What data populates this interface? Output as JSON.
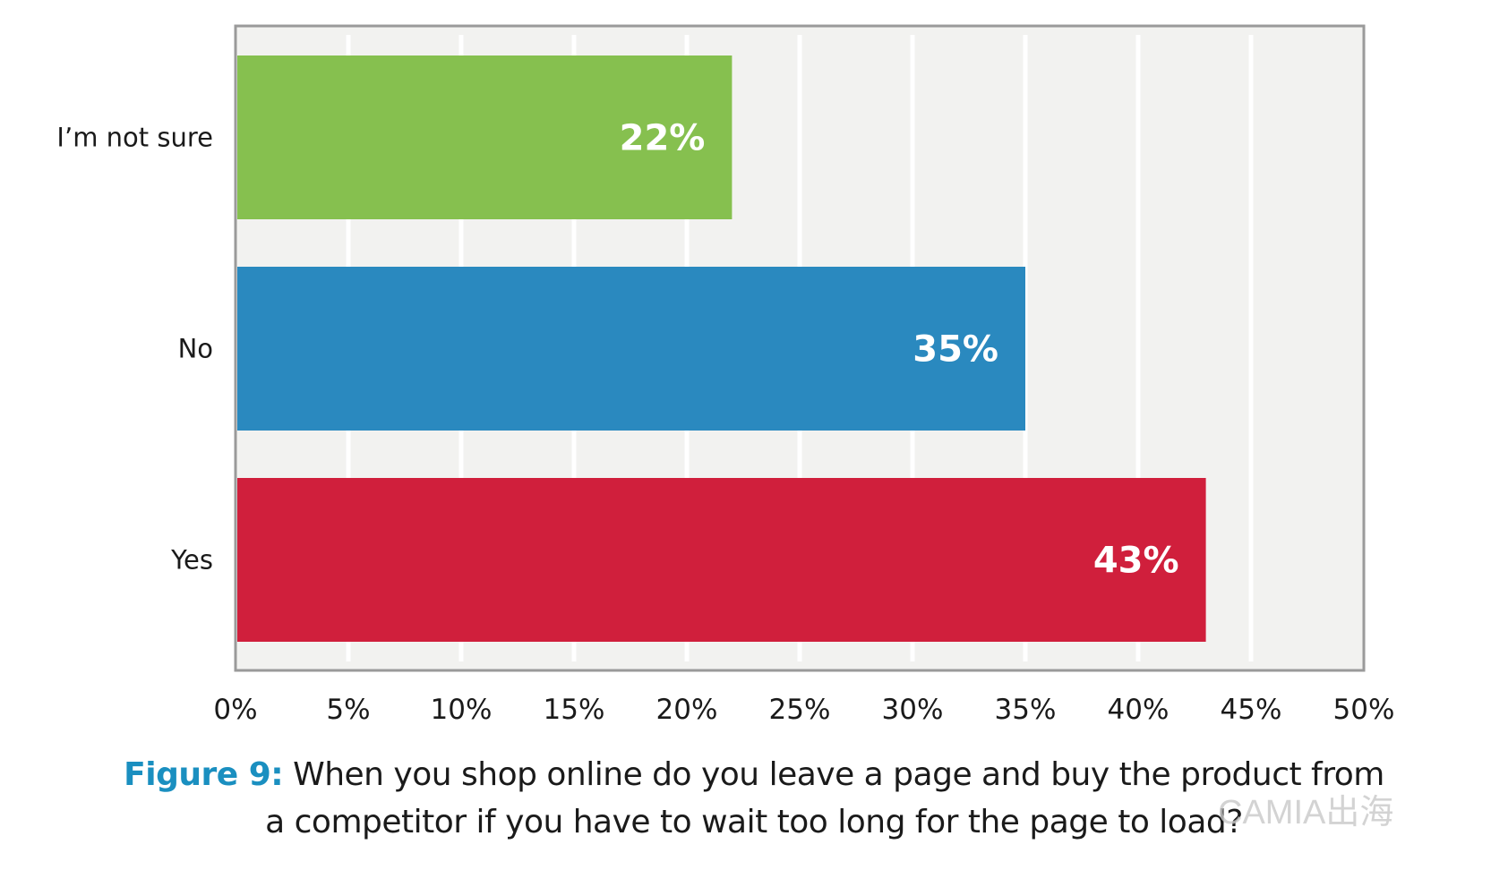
{
  "chart_data": {
    "type": "bar",
    "orientation": "horizontal",
    "categories": [
      "I’m not sure",
      "No",
      "Yes"
    ],
    "values": [
      22,
      35,
      43
    ],
    "data_labels": [
      "22%",
      "35%",
      "43%"
    ],
    "colors": [
      "#86c04f",
      "#2a89bf",
      "#d01f3c"
    ],
    "xlim": [
      0,
      50
    ],
    "xticks": [
      0,
      5,
      10,
      15,
      20,
      25,
      30,
      35,
      40,
      45,
      50
    ],
    "xtick_labels": [
      "0%",
      "5%",
      "10%",
      "15%",
      "20%",
      "25%",
      "30%",
      "35%",
      "40%",
      "45%",
      "50%"
    ],
    "grid": true,
    "title": ""
  },
  "caption": {
    "figure_label": "Figure 9:",
    "line1": " When you shop online do you leave a page and buy the product from",
    "line2": "a competitor if you have to wait too long for the page to load?"
  },
  "watermark": "CAMIA出海"
}
